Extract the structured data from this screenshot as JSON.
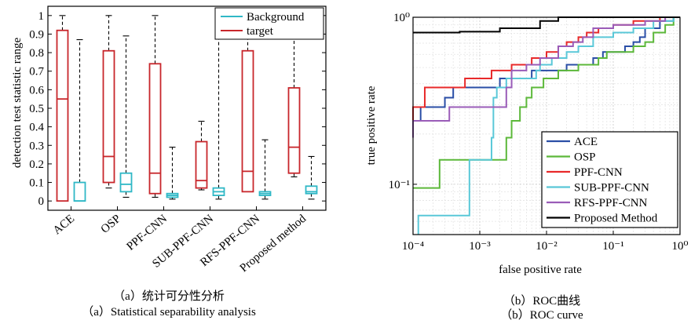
{
  "captions": {
    "a_cn": "（a）统计可分性分析",
    "a_en": "（a）Statistical separability analysis",
    "b_cn": "（b）ROC曲线",
    "b_en": "（b）ROC curve"
  },
  "chart_data": [
    {
      "type": "boxplot",
      "ylabel": "detection test statistic range",
      "ylim": [
        -0.05,
        1.05
      ],
      "yticks": [
        "0",
        "0.1",
        "0.2",
        "0.3",
        "0.4",
        "0.5",
        "0.6",
        "0.7",
        "0.8",
        "0.9",
        "1"
      ],
      "ytick_values": [
        0,
        0.1,
        0.2,
        0.3,
        0.4,
        0.5,
        0.6,
        0.7,
        0.8,
        0.9,
        1
      ],
      "categories": [
        "ACE",
        "OSP",
        "PPF-CNN",
        "SUB-PPF-CNN",
        "RFS-PPF-CNN",
        "Proposed method"
      ],
      "legend": {
        "position": "top-right",
        "entries": [
          "Background",
          "target"
        ]
      },
      "colors": {
        "target": "#c8262b",
        "background": "#2fb8c6"
      },
      "target": [
        {
          "whislo": 0.0,
          "q1": 0.0,
          "med": 0.55,
          "q3": 0.92,
          "whishi": 1.0
        },
        {
          "whislo": 0.07,
          "q1": 0.1,
          "med": 0.24,
          "q3": 0.81,
          "whishi": 1.0
        },
        {
          "whislo": 0.02,
          "q1": 0.04,
          "med": 0.15,
          "q3": 0.74,
          "whishi": 1.0
        },
        {
          "whislo": 0.06,
          "q1": 0.07,
          "med": 0.11,
          "q3": 0.32,
          "whishi": 0.43
        },
        {
          "whislo": 0.05,
          "q1": 0.05,
          "med": 0.16,
          "q3": 0.81,
          "whishi": 1.0
        },
        {
          "whislo": 0.13,
          "q1": 0.15,
          "med": 0.29,
          "q3": 0.61,
          "whishi": 1.0
        }
      ],
      "background": [
        {
          "whislo": 0.0,
          "q1": 0.0,
          "med": 0.0,
          "q3": 0.1,
          "whishi": 0.87
        },
        {
          "whislo": 0.02,
          "q1": 0.05,
          "med": 0.09,
          "q3": 0.15,
          "whishi": 0.89
        },
        {
          "whislo": 0.01,
          "q1": 0.02,
          "med": 0.03,
          "q3": 0.04,
          "whishi": 0.29
        },
        {
          "whislo": 0.01,
          "q1": 0.03,
          "med": 0.05,
          "q3": 0.07,
          "whishi": 1.0
        },
        {
          "whislo": 0.01,
          "q1": 0.03,
          "med": 0.04,
          "q3": 0.05,
          "whishi": 0.33
        },
        {
          "whislo": 0.01,
          "q1": 0.04,
          "med": 0.05,
          "q3": 0.08,
          "whishi": 0.24
        }
      ]
    },
    {
      "type": "line",
      "xscale": "log",
      "yscale": "log",
      "xlabel": "false positive rate",
      "ylabel": "true positive rate",
      "xlim": [
        0.0001,
        1
      ],
      "ylim": [
        0.05,
        1
      ],
      "xticks": [
        "10⁻⁴",
        "10⁻³",
        "10⁻²",
        "10⁻¹",
        "10⁰"
      ],
      "xtick_values": [
        0.0001,
        0.001,
        0.01,
        0.1,
        1
      ],
      "yticks": [
        "10⁻¹",
        "10⁰"
      ],
      "ytick_values": [
        0.1,
        1
      ],
      "grid": true,
      "legend": {
        "position": "bottom-right"
      },
      "series": [
        {
          "name": "ACE",
          "color": "#2a4ea6",
          "points": [
            [
              0.0001,
              0.19
            ],
            [
              0.0001,
              0.24
            ],
            [
              0.00013,
              0.24
            ],
            [
              0.00013,
              0.29
            ],
            [
              0.0003,
              0.29
            ],
            [
              0.0003,
              0.33
            ],
            [
              0.0004,
              0.33
            ],
            [
              0.0004,
              0.38
            ],
            [
              0.002,
              0.38
            ],
            [
              0.002,
              0.43
            ],
            [
              0.006,
              0.43
            ],
            [
              0.006,
              0.48
            ],
            [
              0.02,
              0.48
            ],
            [
              0.02,
              0.52
            ],
            [
              0.05,
              0.52
            ],
            [
              0.05,
              0.57
            ],
            [
              0.07,
              0.57
            ],
            [
              0.07,
              0.62
            ],
            [
              0.15,
              0.62
            ],
            [
              0.15,
              0.67
            ],
            [
              0.2,
              0.67
            ],
            [
              0.2,
              0.71
            ],
            [
              0.25,
              0.71
            ],
            [
              0.25,
              0.76
            ],
            [
              0.3,
              0.76
            ],
            [
              0.3,
              0.86
            ],
            [
              0.5,
              0.86
            ],
            [
              0.5,
              0.95
            ],
            [
              0.8,
              0.95
            ],
            [
              0.8,
              1
            ],
            [
              1,
              1
            ]
          ]
        },
        {
          "name": "OSP",
          "color": "#5cb83a",
          "points": [
            [
              0.0001,
              0.095
            ],
            [
              0.00025,
              0.095
            ],
            [
              0.00025,
              0.14
            ],
            [
              0.0025,
              0.14
            ],
            [
              0.0025,
              0.19
            ],
            [
              0.003,
              0.19
            ],
            [
              0.003,
              0.24
            ],
            [
              0.004,
              0.24
            ],
            [
              0.004,
              0.29
            ],
            [
              0.005,
              0.29
            ],
            [
              0.005,
              0.33
            ],
            [
              0.006,
              0.33
            ],
            [
              0.006,
              0.38
            ],
            [
              0.009,
              0.38
            ],
            [
              0.009,
              0.43
            ],
            [
              0.015,
              0.43
            ],
            [
              0.015,
              0.48
            ],
            [
              0.03,
              0.48
            ],
            [
              0.03,
              0.52
            ],
            [
              0.06,
              0.52
            ],
            [
              0.06,
              0.57
            ],
            [
              0.08,
              0.57
            ],
            [
              0.08,
              0.62
            ],
            [
              0.2,
              0.62
            ],
            [
              0.2,
              0.67
            ],
            [
              0.3,
              0.67
            ],
            [
              0.3,
              0.71
            ],
            [
              0.4,
              0.71
            ],
            [
              0.4,
              0.81
            ],
            [
              0.6,
              0.81
            ],
            [
              0.6,
              0.9
            ],
            [
              0.8,
              0.9
            ],
            [
              0.8,
              1
            ],
            [
              1,
              1
            ]
          ]
        },
        {
          "name": "PPF-CNN",
          "color": "#e8292a",
          "points": [
            [
              0.0001,
              0.24
            ],
            [
              0.0001,
              0.29
            ],
            [
              0.00015,
              0.29
            ],
            [
              0.00015,
              0.38
            ],
            [
              0.0006,
              0.38
            ],
            [
              0.0006,
              0.43
            ],
            [
              0.0015,
              0.43
            ],
            [
              0.0015,
              0.48
            ],
            [
              0.003,
              0.48
            ],
            [
              0.003,
              0.52
            ],
            [
              0.006,
              0.52
            ],
            [
              0.006,
              0.57
            ],
            [
              0.01,
              0.57
            ],
            [
              0.01,
              0.62
            ],
            [
              0.015,
              0.62
            ],
            [
              0.015,
              0.67
            ],
            [
              0.02,
              0.67
            ],
            [
              0.02,
              0.71
            ],
            [
              0.03,
              0.71
            ],
            [
              0.03,
              0.76
            ],
            [
              0.04,
              0.76
            ],
            [
              0.04,
              0.81
            ],
            [
              0.06,
              0.81
            ],
            [
              0.06,
              0.86
            ],
            [
              0.1,
              0.86
            ],
            [
              0.1,
              0.9
            ],
            [
              0.2,
              0.9
            ],
            [
              0.2,
              0.95
            ],
            [
              0.5,
              0.95
            ],
            [
              0.5,
              1
            ],
            [
              1,
              1
            ]
          ]
        },
        {
          "name": "SUB-PPF-CNN",
          "color": "#5ac8d8",
          "points": [
            [
              0.00012,
              0.05
            ],
            [
              0.00012,
              0.065
            ],
            [
              0.0007,
              0.065
            ],
            [
              0.0007,
              0.14
            ],
            [
              0.0015,
              0.14
            ],
            [
              0.0015,
              0.19
            ],
            [
              0.0016,
              0.19
            ],
            [
              0.0016,
              0.33
            ],
            [
              0.0018,
              0.33
            ],
            [
              0.0018,
              0.38
            ],
            [
              0.0025,
              0.38
            ],
            [
              0.0025,
              0.43
            ],
            [
              0.007,
              0.43
            ],
            [
              0.007,
              0.48
            ],
            [
              0.008,
              0.48
            ],
            [
              0.008,
              0.52
            ],
            [
              0.012,
              0.52
            ],
            [
              0.012,
              0.57
            ],
            [
              0.02,
              0.57
            ],
            [
              0.02,
              0.62
            ],
            [
              0.03,
              0.62
            ],
            [
              0.03,
              0.67
            ],
            [
              0.05,
              0.67
            ],
            [
              0.05,
              0.76
            ],
            [
              0.1,
              0.76
            ],
            [
              0.1,
              0.81
            ],
            [
              0.2,
              0.81
            ],
            [
              0.2,
              0.86
            ],
            [
              0.4,
              0.86
            ],
            [
              0.4,
              0.95
            ],
            [
              0.8,
              0.95
            ],
            [
              0.8,
              1
            ],
            [
              1,
              1
            ]
          ]
        },
        {
          "name": "RFS-PPF-CNN",
          "color": "#9a5cb8",
          "points": [
            [
              0.0001,
              0.19
            ],
            [
              0.0001,
              0.24
            ],
            [
              0.00035,
              0.24
            ],
            [
              0.00035,
              0.29
            ],
            [
              0.0025,
              0.29
            ],
            [
              0.0025,
              0.38
            ],
            [
              0.003,
              0.38
            ],
            [
              0.003,
              0.48
            ],
            [
              0.005,
              0.48
            ],
            [
              0.005,
              0.52
            ],
            [
              0.008,
              0.52
            ],
            [
              0.008,
              0.57
            ],
            [
              0.015,
              0.57
            ],
            [
              0.015,
              0.67
            ],
            [
              0.025,
              0.67
            ],
            [
              0.025,
              0.71
            ],
            [
              0.035,
              0.71
            ],
            [
              0.035,
              0.76
            ],
            [
              0.05,
              0.76
            ],
            [
              0.05,
              0.86
            ],
            [
              0.1,
              0.86
            ],
            [
              0.1,
              0.9
            ],
            [
              0.3,
              0.9
            ],
            [
              0.3,
              0.95
            ],
            [
              0.6,
              0.95
            ],
            [
              0.6,
              1
            ],
            [
              1,
              1
            ]
          ]
        },
        {
          "name": "Proposed Method",
          "color": "#000000",
          "points": [
            [
              0.0001,
              0.81
            ],
            [
              0.0005,
              0.81
            ],
            [
              0.0005,
              0.82
            ],
            [
              0.002,
              0.82
            ],
            [
              0.002,
              0.86
            ],
            [
              0.008,
              0.86
            ],
            [
              0.008,
              0.95
            ],
            [
              0.015,
              0.95
            ],
            [
              0.015,
              1
            ],
            [
              1,
              1
            ]
          ]
        }
      ]
    }
  ]
}
